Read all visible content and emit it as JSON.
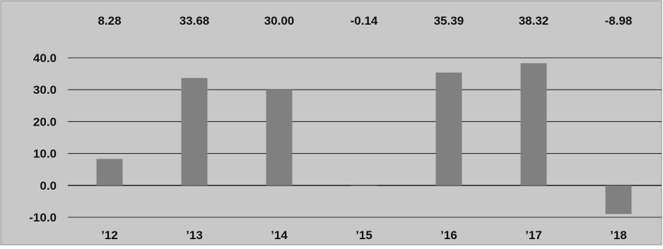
{
  "chart_data": {
    "type": "bar",
    "categories": [
      "’12",
      "’13",
      "’14",
      "’15",
      "’16",
      "’17",
      "’18"
    ],
    "values": [
      8.28,
      33.68,
      30.0,
      -0.14,
      35.39,
      38.32,
      -8.98
    ],
    "value_labels": [
      "8.28",
      "33.68",
      "30.00",
      "-0.14",
      "35.39",
      "38.32",
      "-8.98"
    ],
    "y_ticks": [
      "40.0",
      "30.0",
      "20.0",
      "10.0",
      "0.0",
      "-10.0"
    ],
    "ylim": [
      -10,
      40
    ],
    "title": "",
    "xlabel": "",
    "ylabel": "",
    "grid": true,
    "legend": "none",
    "colors": {
      "background": "#c8c8c8",
      "bar": "#808080",
      "gridline": "#2a2a2a",
      "text": "#111111"
    }
  }
}
